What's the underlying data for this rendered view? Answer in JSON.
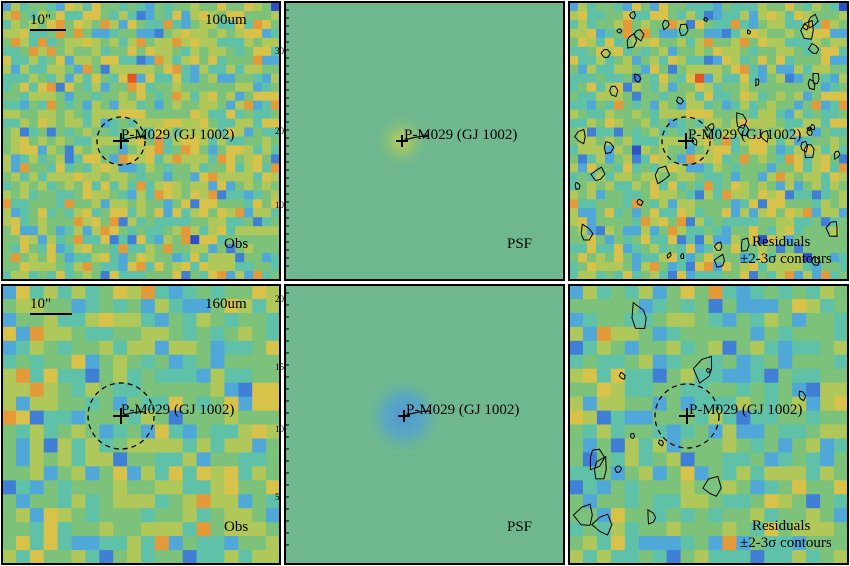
{
  "figure": {
    "rows": [
      {
        "band": "100um",
        "scale_bar": "10\"",
        "panels": [
          {
            "kind": "obs",
            "label": "Obs",
            "target": "P-M029 (GJ 1002)"
          },
          {
            "kind": "psf",
            "label": "PSF",
            "target": "P-M029 (GJ 1002)"
          },
          {
            "kind": "residual",
            "label": "Residuals",
            "sublabel": "±2-3σ contours",
            "target": "P-M029 (GJ 1002)"
          }
        ]
      },
      {
        "band": "160um",
        "scale_bar": "10\"",
        "panels": [
          {
            "kind": "obs",
            "label": "Obs",
            "target": "P-M029 (GJ 1002)"
          },
          {
            "kind": "psf",
            "label": "PSF",
            "target": "P-M029 (GJ 1002)"
          },
          {
            "kind": "residual",
            "label": "Residuals",
            "sublabel": "±2-3σ contours",
            "target": "P-M029 (GJ 1002)"
          }
        ]
      }
    ],
    "tick_labels": {
      "top_right_axis": [
        "30",
        "20",
        "10"
      ],
      "bottom_right_axis": [
        "20",
        "15",
        "10",
        "5"
      ]
    },
    "colors": {
      "psf_background": "#6fb88f",
      "colormap": [
        "#3a1a8a",
        "#2c50c8",
        "#3f7fd6",
        "#4fa8d8",
        "#5fc2a8",
        "#7cc27a",
        "#b0c85a",
        "#d8c24a",
        "#e59a3a",
        "#e0552a",
        "#d42a1e"
      ]
    }
  }
}
